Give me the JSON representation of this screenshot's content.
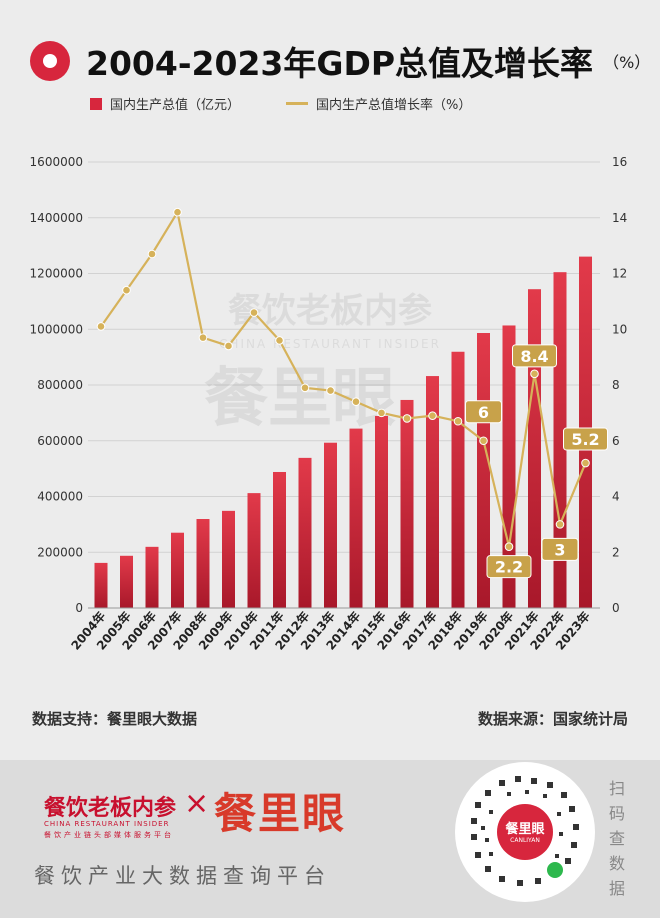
{
  "title": "2004-2023年GDP总值及增长率",
  "title_unit": "（%）",
  "legend": {
    "bar": "国内生产总值（亿元）",
    "line": "国内生产总值增长率（%）"
  },
  "colors": {
    "bar_top": "#e23a4a",
    "bar_bottom": "#a8182a",
    "line": "#d6b25a",
    "label_bg": "#c8a24a"
  },
  "chart_data": {
    "type": "bar",
    "categories": [
      "2004年",
      "2005年",
      "2006年",
      "2007年",
      "2008年",
      "2009年",
      "2010年",
      "2011年",
      "2012年",
      "2013年",
      "2014年",
      "2015年",
      "2016年",
      "2017年",
      "2018年",
      "2019年",
      "2020年",
      "2021年",
      "2022年",
      "2023年"
    ],
    "series": [
      {
        "name": "国内生产总值（亿元）",
        "type": "bar",
        "axis": "left",
        "values": [
          161840,
          187319,
          219439,
          270092,
          319245,
          348518,
          412119,
          487940,
          538580,
          592963,
          643563,
          688858,
          746395,
          832036,
          919281,
          986515,
          1013567,
          1143670,
          1204724,
          1260582
        ]
      },
      {
        "name": "国内生产总值增长率（%）",
        "type": "line",
        "axis": "right",
        "values": [
          10.1,
          11.4,
          12.7,
          14.2,
          9.7,
          9.4,
          10.6,
          9.6,
          7.9,
          7.8,
          7.4,
          7.0,
          6.8,
          6.9,
          6.7,
          6.0,
          2.2,
          8.4,
          3.0,
          5.2
        ]
      }
    ],
    "point_labels": [
      {
        "index": 15,
        "text": "6"
      },
      {
        "index": 16,
        "text": "2.2"
      },
      {
        "index": 17,
        "text": "8.4"
      },
      {
        "index": 18,
        "text": "3"
      },
      {
        "index": 19,
        "text": "5.2"
      }
    ],
    "left_axis": {
      "ticks": [
        "0",
        "200000",
        "400000",
        "600000",
        "800000",
        "1000000",
        "1200000",
        "1400000",
        "1600000"
      ],
      "range": [
        0,
        1600000
      ]
    },
    "right_axis": {
      "ticks": [
        "0",
        "2",
        "4",
        "6",
        "8",
        "10",
        "12",
        "14",
        "16"
      ],
      "range": [
        0,
        16
      ]
    },
    "grid": true
  },
  "watermark": {
    "line1": "餐饮老板内参",
    "line2": "CHINA RESTAURANT INSIDER",
    "line3": "餐里眼"
  },
  "footnotes": {
    "left": "数据支持：餐里眼大数据",
    "right": "数据来源：国家统计局"
  },
  "footer": {
    "brand1": "餐饮老板内参",
    "brand1_sub": "CHINA RESTAURANT INSIDER",
    "brand1_sub2": "餐饮产业链头部媒体服务平台",
    "separator": "×",
    "brand2": "餐里眼",
    "slogan": "餐饮产业大数据查询平台",
    "qr_logo": "餐里眼",
    "qr_logo_sub": "CANLIYAN",
    "scan_text": "扫码查数据"
  }
}
